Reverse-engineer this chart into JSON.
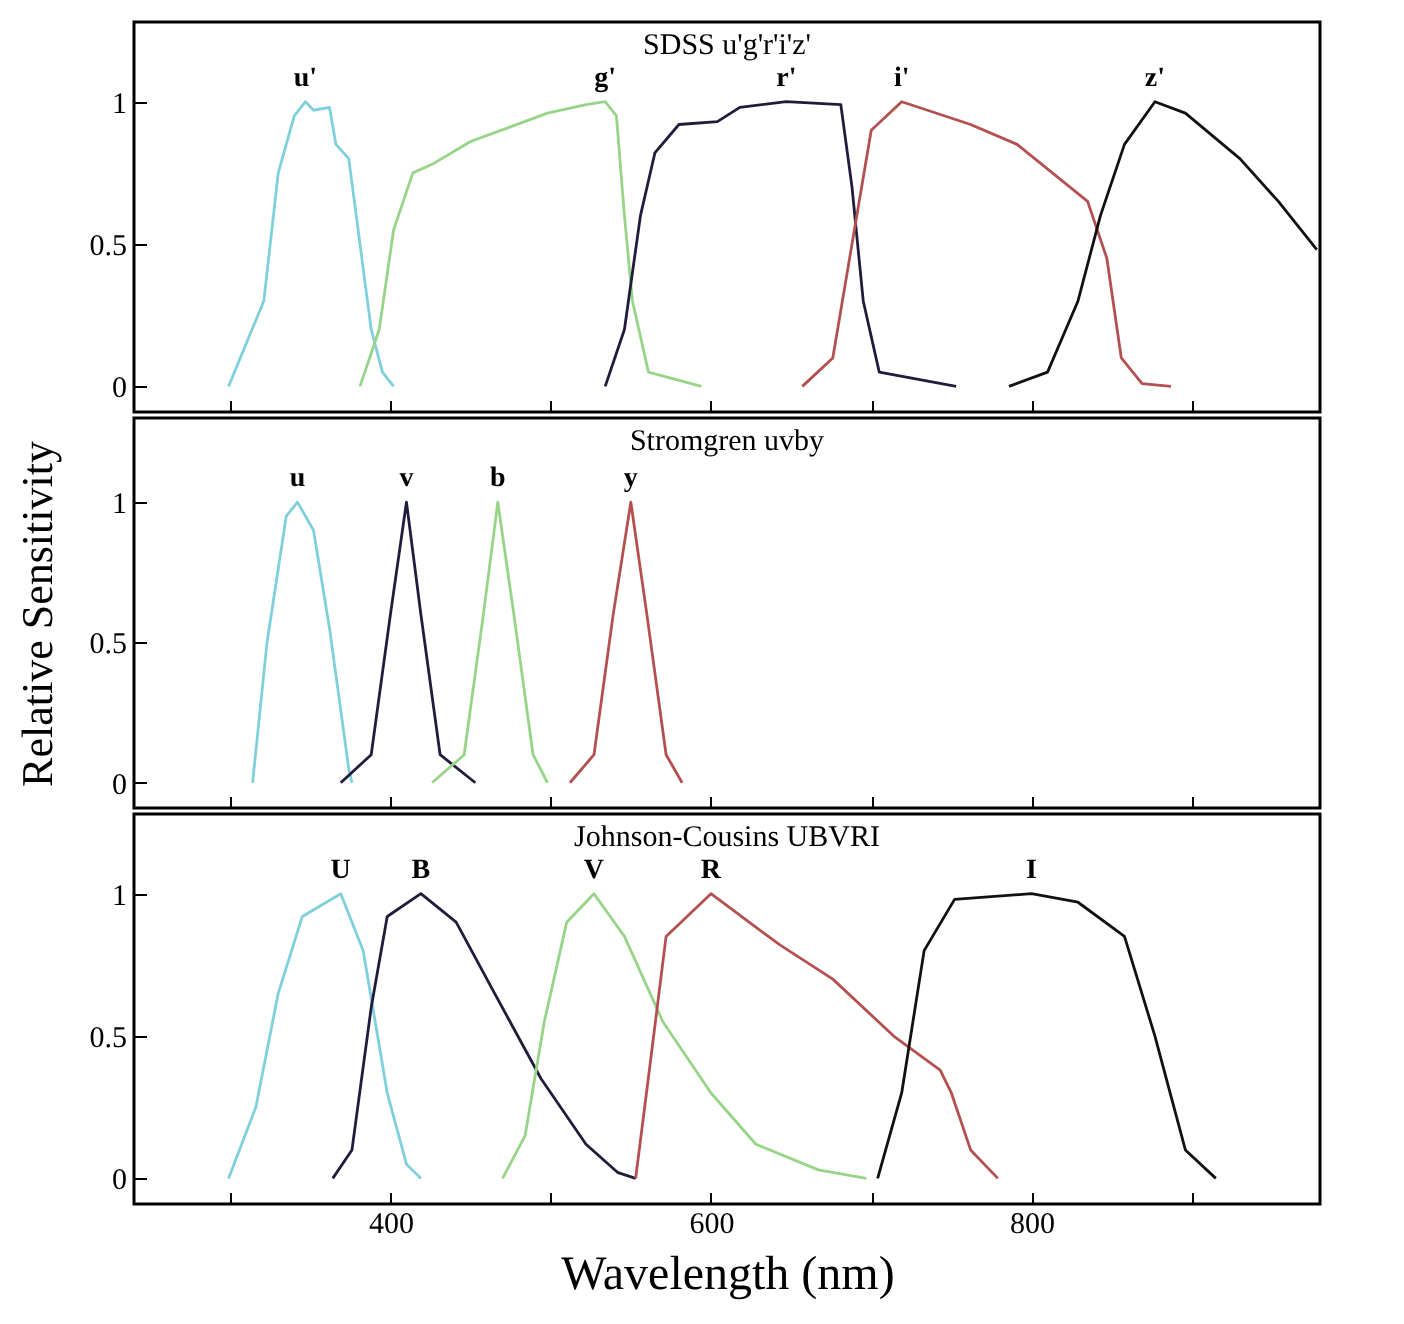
{
  "chart_data": [
    {
      "type": "line",
      "title": "SDSS u'g'r'i'z'",
      "xlim": [
        240,
        980
      ],
      "ylim": [
        -0.09,
        1.28
      ],
      "xticks": [
        {
          "value": 300,
          "label": null
        },
        {
          "value": 400,
          "label": null
        },
        {
          "value": 500,
          "label": null
        },
        {
          "value": 600,
          "label": null
        },
        {
          "value": 700,
          "label": null
        },
        {
          "value": 800,
          "label": null
        },
        {
          "value": 900,
          "label": null
        }
      ],
      "yticks": [
        0,
        0.5,
        1
      ],
      "tick_labels": "y",
      "series": [
        {
          "name": "u'",
          "color": "#80d0dc",
          "x": [
            299,
            321,
            330,
            340,
            347,
            352,
            362,
            366,
            374,
            381,
            388,
            395,
            402
          ],
          "values": [
            0,
            0.3,
            0.75,
            0.95,
            1.0,
            0.97,
            0.98,
            0.85,
            0.8,
            0.5,
            0.2,
            0.05,
            0
          ]
        },
        {
          "name": "g'",
          "color": "#98d488",
          "x": [
            381,
            393,
            402,
            414,
            426,
            450,
            474,
            498,
            522,
            534,
            541,
            546,
            551,
            561,
            594
          ],
          "values": [
            0,
            0.2,
            0.55,
            0.75,
            0.78,
            0.86,
            0.91,
            0.96,
            0.99,
            1.0,
            0.95,
            0.6,
            0.3,
            0.05,
            0
          ]
        },
        {
          "name": "r'",
          "color": "#1e1e3c",
          "x": [
            534,
            546,
            556,
            565,
            580,
            604,
            618,
            647,
            681,
            688,
            695,
            705,
            753
          ],
          "values": [
            0,
            0.2,
            0.6,
            0.82,
            0.92,
            0.93,
            0.98,
            1.0,
            0.99,
            0.7,
            0.3,
            0.05,
            0
          ]
        },
        {
          "name": "i'",
          "color": "#b45050",
          "x": [
            657,
            676,
            688,
            700,
            719,
            762,
            791,
            835,
            847,
            856,
            869,
            887
          ],
          "values": [
            0,
            0.1,
            0.5,
            0.9,
            1.0,
            0.92,
            0.85,
            0.65,
            0.45,
            0.1,
            0.01,
            0
          ]
        },
        {
          "name": "z'",
          "color": "#111111",
          "x": [
            786,
            810,
            829,
            843,
            858,
            877,
            896,
            930,
            954,
            978
          ],
          "values": [
            0,
            0.05,
            0.3,
            0.6,
            0.85,
            1.0,
            0.96,
            0.8,
            0.65,
            0.48
          ]
        }
      ]
    },
    {
      "type": "line",
      "title": "Stromgren uvby",
      "ylabel": "Relative Sensitivity",
      "xlim": [
        240,
        980
      ],
      "ylim": [
        -0.09,
        1.3
      ],
      "xticks": [
        {
          "value": 300,
          "label": null
        },
        {
          "value": 400,
          "label": null
        },
        {
          "value": 500,
          "label": null
        },
        {
          "value": 600,
          "label": null
        },
        {
          "value": 700,
          "label": null
        },
        {
          "value": 800,
          "label": null
        },
        {
          "value": 900,
          "label": null
        }
      ],
      "yticks": [
        0,
        0.5,
        1
      ],
      "tick_labels": "y",
      "series": [
        {
          "name": "u",
          "color": "#80d0dc",
          "x": [
            314,
            323,
            335,
            342,
            352,
            362,
            374,
            376
          ],
          "values": [
            0,
            0.5,
            0.95,
            1.0,
            0.9,
            0.55,
            0.05,
            0
          ]
        },
        {
          "name": "v",
          "color": "#1e1e3c",
          "x": [
            369,
            388,
            400,
            410,
            419,
            431,
            453
          ],
          "values": [
            0,
            0.1,
            0.6,
            1.0,
            0.6,
            0.1,
            0
          ]
        },
        {
          "name": "b",
          "color": "#98d488",
          "x": [
            426,
            446,
            458,
            467,
            477,
            489,
            498
          ],
          "values": [
            0,
            0.1,
            0.6,
            1.0,
            0.6,
            0.1,
            0
          ]
        },
        {
          "name": "y",
          "color": "#b45050",
          "x": [
            512,
            527,
            539,
            550,
            560,
            572,
            582
          ],
          "values": [
            0,
            0.1,
            0.6,
            1.0,
            0.6,
            0.1,
            0
          ]
        }
      ]
    },
    {
      "type": "line",
      "title": "Johnson-Cousins UBVRI",
      "xlabel": "Wavelength (nm)",
      "xlim": [
        240,
        980
      ],
      "ylim": [
        -0.09,
        1.28
      ],
      "xticks": [
        {
          "value": 300,
          "label": null
        },
        400,
        {
          "value": 500,
          "label": null
        },
        600,
        {
          "value": 700,
          "label": null
        },
        800,
        {
          "value": 900,
          "label": null
        }
      ],
      "yticks": [
        0,
        0.5,
        1
      ],
      "series": [
        {
          "name": "U",
          "color": "#80d0dc",
          "x": [
            299,
            316,
            330,
            345,
            369,
            383,
            398,
            410,
            419
          ],
          "values": [
            0,
            0.25,
            0.65,
            0.92,
            1.0,
            0.8,
            0.3,
            0.05,
            0
          ]
        },
        {
          "name": "B",
          "color": "#1e1e3c",
          "x": [
            364,
            376,
            388,
            398,
            419,
            441,
            465,
            494,
            522,
            542,
            553
          ],
          "values": [
            0,
            0.1,
            0.6,
            0.92,
            1.0,
            0.9,
            0.65,
            0.35,
            0.12,
            0.02,
            0
          ]
        },
        {
          "name": "V",
          "color": "#98d488",
          "x": [
            470,
            484,
            496,
            510,
            527,
            546,
            570,
            600,
            628,
            667,
            697
          ],
          "values": [
            0,
            0.15,
            0.55,
            0.9,
            1.0,
            0.85,
            0.55,
            0.3,
            0.12,
            0.03,
            0
          ]
        },
        {
          "name": "R",
          "color": "#b45050",
          "x": [
            553,
            562,
            572,
            600,
            643,
            676,
            714,
            743,
            750,
            762,
            779
          ],
          "values": [
            0,
            0.4,
            0.85,
            1.0,
            0.82,
            0.7,
            0.5,
            0.38,
            0.3,
            0.1,
            0
          ]
        },
        {
          "name": "I",
          "color": "#111111",
          "x": [
            704,
            719,
            733,
            752,
            800,
            829,
            858,
            877,
            896,
            915
          ],
          "values": [
            0,
            0.3,
            0.8,
            0.98,
            1.0,
            0.97,
            0.85,
            0.5,
            0.1,
            0
          ]
        }
      ]
    }
  ]
}
